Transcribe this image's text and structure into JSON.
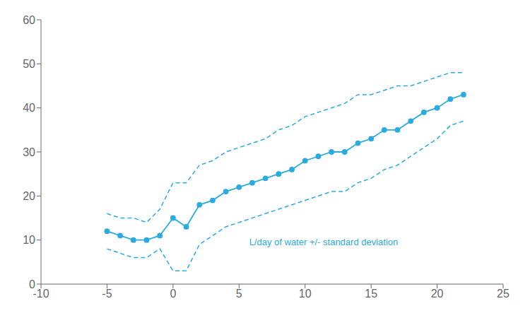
{
  "chart_data": {
    "type": "line",
    "x": [
      -5,
      -4,
      -3,
      -2,
      -1,
      0,
      1,
      2,
      3,
      4,
      5,
      6,
      7,
      8,
      9,
      10,
      11,
      12,
      13,
      14,
      15,
      16,
      17,
      18,
      19,
      20,
      21,
      22
    ],
    "series": [
      {
        "values": [
          16,
          15,
          15,
          14,
          17,
          23,
          23,
          27,
          28,
          30,
          31,
          32,
          33,
          35,
          36,
          38,
          39,
          40,
          41,
          43,
          43,
          44,
          45,
          45,
          46,
          47,
          48,
          48
        ],
        "color": "#29ABE2",
        "line_style": "dashed"
      },
      {
        "values": [
          8,
          7,
          6,
          6,
          8,
          3,
          3,
          9,
          11,
          13,
          14,
          15,
          16,
          17,
          18,
          19,
          20,
          21,
          21,
          23,
          24,
          26,
          27,
          29,
          31,
          33,
          36,
          37
        ],
        "color": "#29ABE2",
        "line_style": "dashed"
      },
      {
        "values": [
          12,
          11,
          10,
          10,
          11,
          15,
          13,
          18,
          19,
          21,
          22,
          23,
          24,
          25,
          26,
          28,
          29,
          30,
          30,
          32,
          33,
          35,
          35,
          37,
          39,
          40,
          42,
          43
        ],
        "color": "#29ABE2",
        "line_style": "solid",
        "marker": "circle"
      }
    ],
    "annotations": [
      {
        "text": "L/day of water +/- standard deviation",
        "x": 5.5,
        "y": 9.5,
        "color": "#29ABE2"
      }
    ],
    "xlim": [
      -10,
      25
    ],
    "ylim": [
      0,
      60
    ],
    "xticks": [
      -10,
      -5,
      0,
      5,
      10,
      15,
      20,
      25
    ],
    "yticks": [
      0,
      10,
      20,
      30,
      40,
      50,
      60
    ],
    "grid": false
  }
}
